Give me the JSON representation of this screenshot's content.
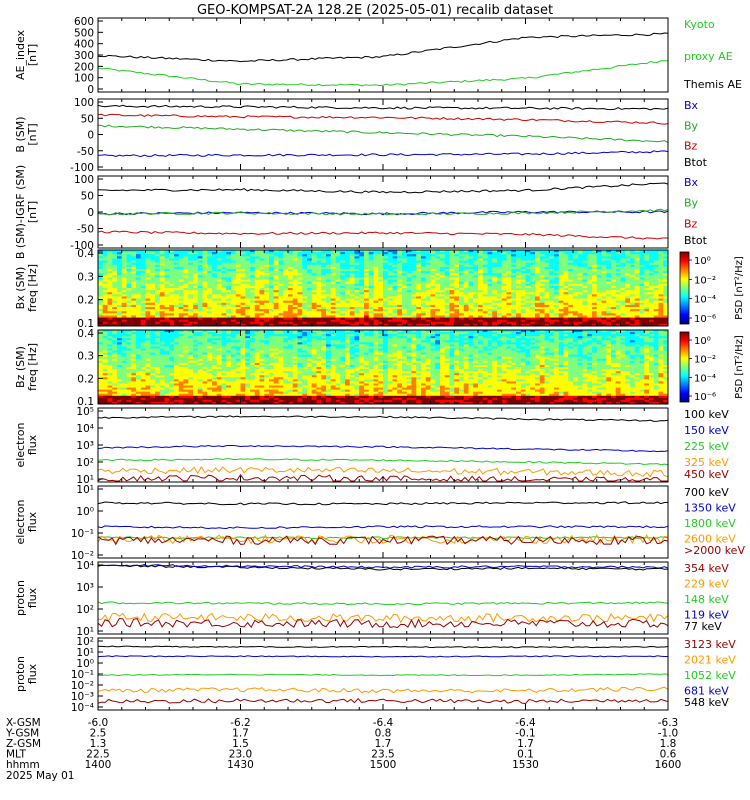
{
  "title": "GEO-KOMPSAT-2A 128.2E (2025-05-01) recalib dataset",
  "footer": {
    "rows": [
      {
        "label": "X-GSM",
        "values": [
          "-6.0",
          "-6.2",
          "-6.4",
          "-6.4",
          "-6.3"
        ]
      },
      {
        "label": "Y-GSM",
        "values": [
          "2.5",
          "1.7",
          "0.8",
          "-0.1",
          "-1.0"
        ]
      },
      {
        "label": "Z-GSM",
        "values": [
          "1.3",
          "1.5",
          "1.7",
          "1.7",
          "1.8"
        ]
      },
      {
        "label": "MLT",
        "values": [
          "22.5",
          "23.0",
          "23.5",
          "0.1",
          "0.6"
        ]
      },
      {
        "label": "hhmm",
        "values": [
          "1400",
          "1430",
          "1500",
          "1530",
          "1600"
        ]
      }
    ],
    "date": "2025 May 01"
  },
  "panels": [
    {
      "id": "ae",
      "ylabel": [
        "AE_index",
        "[nT]"
      ],
      "yticks": [
        "600",
        "500",
        "400",
        "300",
        "200",
        "100",
        "0"
      ],
      "legend": [
        {
          "text": "Kyoto",
          "color": "#22cc22"
        },
        {
          "text": "proxy AE",
          "color": "#22cc22"
        },
        {
          "text": "Themis AE",
          "color": "#000000"
        }
      ]
    },
    {
      "id": "bgsm",
      "ylabel": [
        "B (SM)",
        "[nT]"
      ],
      "yticks": [
        "100",
        "50",
        "0",
        "-50",
        "-100"
      ],
      "legend": [
        {
          "text": "Bx",
          "color": "#0000cc"
        },
        {
          "text": "By",
          "color": "#22aa22"
        },
        {
          "text": "Bz",
          "color": "#cc0000"
        },
        {
          "text": "Btot",
          "color": "#000000"
        }
      ]
    },
    {
      "id": "bigrf",
      "ylabel": [
        "B (SM)-IGRF (SM)",
        "[nT]"
      ],
      "yticks": [
        "100",
        "50",
        "0",
        "-50",
        "-100"
      ],
      "legend": [
        {
          "text": "Bx",
          "color": "#0000cc"
        },
        {
          "text": "By",
          "color": "#22aa22"
        },
        {
          "text": "Bz",
          "color": "#cc0000"
        },
        {
          "text": "Btot",
          "color": "#000000"
        }
      ]
    },
    {
      "id": "specbx",
      "ylabel": [
        "Bx (SM)",
        "freq [Hz]"
      ],
      "yticks": [
        "0.4",
        "0.3",
        "0.2",
        "0.1"
      ],
      "colorbar": {
        "label": "PSD [nT²/Hz]",
        "ticks": [
          "10⁰",
          "10⁻²",
          "10⁻⁴",
          "10⁻⁶"
        ]
      }
    },
    {
      "id": "specbz",
      "ylabel": [
        "Bz (SM)",
        "freq [Hz]"
      ],
      "yticks": [
        "0.4",
        "0.3",
        "0.2",
        "0.1"
      ],
      "colorbar": {
        "label": "PSD [nT²/Hz]",
        "ticks": [
          "10⁰",
          "10⁻²",
          "10⁻⁴",
          "10⁻⁶"
        ]
      }
    },
    {
      "id": "eflux1",
      "ylabel": [
        "electron",
        "flux"
      ],
      "yticks": [
        "10⁵",
        "10⁴",
        "10³",
        "10²",
        "10¹"
      ],
      "legend": [
        {
          "text": "100 keV",
          "color": "#000000"
        },
        {
          "text": "150 keV",
          "color": "#0000cc"
        },
        {
          "text": "225 keV",
          "color": "#22cc22"
        },
        {
          "text": "325 keV",
          "color": "#ff9900"
        },
        {
          "text": "450 keV",
          "color": "#990000"
        }
      ]
    },
    {
      "id": "eflux2",
      "ylabel": [
        "electron",
        "flux"
      ],
      "yticks": [
        "10¹",
        "10⁰",
        "10⁻¹",
        "10⁻²"
      ],
      "legend": [
        {
          "text": "700 keV",
          "color": "#000000"
        },
        {
          "text": "1350 keV",
          "color": "#0000cc"
        },
        {
          "text": "1800 keV",
          "color": "#22cc22"
        },
        {
          "text": "2600 keV",
          "color": "#ff9900"
        },
        {
          "text": ">2000 keV",
          "color": "#990000"
        }
      ]
    },
    {
      "id": "pflux1",
      "ylabel": [
        "proton",
        "flux"
      ],
      "yticks": [
        "10⁴",
        "10³",
        "10²",
        "10¹"
      ],
      "legend": [
        {
          "text": "354 keV",
          "color": "#990000"
        },
        {
          "text": "229 keV",
          "color": "#ff9900"
        },
        {
          "text": "148 keV",
          "color": "#22cc22"
        },
        {
          "text": "119 keV",
          "color": "#0000cc"
        },
        {
          "text": "77 keV",
          "color": "#000000"
        }
      ]
    },
    {
      "id": "pflux2",
      "ylabel": [
        "proton",
        "flux"
      ],
      "yticks": [
        "10²",
        "10¹",
        "10⁰",
        "10⁻¹",
        "10⁻²",
        "10⁻³",
        "10⁻⁴"
      ],
      "legend": [
        {
          "text": "3123 keV",
          "color": "#990000"
        },
        {
          "text": "2021 keV",
          "color": "#ff9900"
        },
        {
          "text": "1052 keV",
          "color": "#22cc22"
        },
        {
          "text": "681 keV",
          "color": "#0000cc"
        },
        {
          "text": "548 keV",
          "color": "#000000"
        }
      ]
    }
  ],
  "chart_data": [
    {
      "type": "line",
      "panel": "ae",
      "x": [
        "1400",
        "1430",
        "1500",
        "1530",
        "1600"
      ],
      "ylim": [
        0,
        650
      ],
      "series": [
        {
          "name": "Kyoto proxy AE",
          "color": "#22cc22",
          "values": [
            210,
            70,
            60,
            120,
            280
          ]
        },
        {
          "name": "Themis AE",
          "color": "#000000",
          "values": [
            320,
            270,
            310,
            480,
            510
          ]
        }
      ]
    },
    {
      "type": "line",
      "panel": "bgsm",
      "x": [
        "1400",
        "1430",
        "1500",
        "1530",
        "1600"
      ],
      "ylim": [
        -100,
        100
      ],
      "series": [
        {
          "name": "Bx",
          "color": "#0000cc",
          "values": [
            -60,
            -58,
            -57,
            -55,
            -48
          ]
        },
        {
          "name": "By",
          "color": "#22aa22",
          "values": [
            25,
            15,
            5,
            -5,
            -20
          ]
        },
        {
          "name": "Bz",
          "color": "#cc0000",
          "values": [
            55,
            50,
            48,
            42,
            32
          ]
        },
        {
          "name": "Btot",
          "color": "#000000",
          "values": [
            80,
            78,
            75,
            74,
            72
          ]
        }
      ]
    },
    {
      "type": "line",
      "panel": "bigrf",
      "x": [
        "1400",
        "1430",
        "1500",
        "1530",
        "1600"
      ],
      "ylim": [
        -100,
        100
      ],
      "series": [
        {
          "name": "Bx",
          "color": "#0000cc",
          "values": [
            -5,
            -2,
            -5,
            0,
            0
          ]
        },
        {
          "name": "By",
          "color": "#22aa22",
          "values": [
            -5,
            -3,
            -6,
            -3,
            5
          ]
        },
        {
          "name": "Bz",
          "color": "#cc0000",
          "values": [
            -55,
            -60,
            -58,
            -62,
            -75
          ]
        },
        {
          "name": "Btot",
          "color": "#000000",
          "values": [
            60,
            62,
            55,
            60,
            80
          ]
        }
      ]
    },
    {
      "type": "heatmap",
      "panel": "specbx",
      "ylim": [
        0,
        0.5
      ]
    },
    {
      "type": "heatmap",
      "panel": "specbz",
      "ylim": [
        0,
        0.5
      ]
    },
    {
      "type": "line",
      "panel": "eflux1",
      "scale": "log",
      "ylim": [
        10,
        100000
      ],
      "series": [
        {
          "name": "100 keV",
          "color": "#000000",
          "values": [
            30000,
            35000,
            33000,
            25000,
            20000
          ]
        },
        {
          "name": "150 keV",
          "color": "#0000cc",
          "values": [
            700,
            900,
            800,
            600,
            450
          ]
        },
        {
          "name": "225 keV",
          "color": "#22cc22",
          "values": [
            150,
            170,
            150,
            120,
            90
          ]
        },
        {
          "name": "325 keV",
          "color": "#ff9900",
          "values": [
            40,
            45,
            40,
            35,
            28
          ]
        },
        {
          "name": "450 keV",
          "color": "#990000",
          "values": [
            15,
            17,
            15,
            13,
            12
          ]
        }
      ]
    },
    {
      "type": "line",
      "panel": "eflux2",
      "scale": "log",
      "ylim": [
        0.01,
        10
      ],
      "series": [
        {
          "name": "700 keV",
          "color": "#000000",
          "values": [
            2.0,
            1.8,
            1.8,
            2.0,
            2.0
          ]
        },
        {
          "name": "1350 keV",
          "color": "#0000cc",
          "values": [
            0.2,
            0.18,
            0.2,
            0.2,
            0.2
          ]
        },
        {
          "name": "1800 keV",
          "color": "#22cc22",
          "values": [
            0.07,
            0.07,
            0.07,
            0.07,
            0.07
          ]
        },
        {
          "name": "2600 keV",
          "color": "#ff9900",
          "values": [
            0.06,
            0.06,
            0.06,
            0.06,
            0.06
          ]
        },
        {
          "name": ">2000 keV",
          "color": "#990000",
          "values": [
            0.055,
            0.055,
            0.055,
            0.055,
            0.055
          ]
        }
      ]
    },
    {
      "type": "line",
      "panel": "pflux1",
      "scale": "log",
      "ylim": [
        10,
        10000
      ],
      "series": [
        {
          "name": "77 keV",
          "color": "#000000",
          "values": [
            7000,
            6000,
            5000,
            5500,
            5000
          ]
        },
        {
          "name": "119 keV",
          "color": "#0000cc",
          "values": [
            7500,
            6800,
            6000,
            6500,
            6000
          ]
        },
        {
          "name": "148 keV",
          "color": "#22cc22",
          "values": [
            200,
            190,
            180,
            190,
            200
          ]
        },
        {
          "name": "229 keV",
          "color": "#ff9900",
          "values": [
            50,
            48,
            45,
            48,
            45
          ]
        },
        {
          "name": "354 keV",
          "color": "#990000",
          "values": [
            30,
            28,
            27,
            28,
            27
          ]
        }
      ]
    },
    {
      "type": "line",
      "panel": "pflux2",
      "scale": "log",
      "ylim": [
        0.0001,
        100
      ],
      "series": [
        {
          "name": "548 keV",
          "color": "#000000",
          "values": [
            20,
            18,
            18,
            17,
            18
          ]
        },
        {
          "name": "681 keV",
          "color": "#0000cc",
          "values": [
            3,
            3,
            2.8,
            3,
            3
          ]
        },
        {
          "name": "1052 keV",
          "color": "#22cc22",
          "values": [
            0.08,
            0.09,
            0.08,
            0.08,
            0.1
          ]
        },
        {
          "name": "2021 keV",
          "color": "#ff9900",
          "values": [
            0.004,
            0.005,
            0.004,
            0.004,
            0.006
          ]
        },
        {
          "name": "3123 keV",
          "color": "#990000",
          "values": [
            0.0005,
            0.0006,
            0.0006,
            0.0005,
            0.0007
          ]
        }
      ]
    }
  ]
}
